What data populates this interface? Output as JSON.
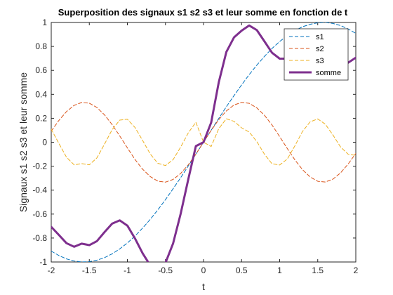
{
  "chart_data": {
    "type": "line",
    "title": "Superposition des signaux s1 s2 s3 et leur somme en fonction de t",
    "xlabel": "t",
    "ylabel": "Signaux s1 s2 s3 et leur somme",
    "xlim": [
      -2,
      2
    ],
    "ylim": [
      -1,
      1
    ],
    "xticks": [
      -2,
      -1.5,
      -1,
      -0.5,
      0,
      0.5,
      1,
      1.5,
      2
    ],
    "xtick_labels": [
      "-2",
      "-1.5",
      "-1",
      "-0.5",
      "0",
      "0.5",
      "1",
      "1.5",
      "2"
    ],
    "yticks": [
      -1,
      -0.8,
      -0.6,
      -0.4,
      -0.2,
      0,
      0.2,
      0.4,
      0.6,
      0.8,
      1
    ],
    "ytick_labels": [
      "-1",
      "-0.8",
      "-0.6",
      "-0.4",
      "-0.2",
      "0",
      "0.2",
      "0.4",
      "0.6",
      "0.8",
      "1"
    ],
    "grid": false,
    "legend_position": "top-right",
    "x": [
      -2.0,
      -1.9,
      -1.8,
      -1.7,
      -1.6,
      -1.5,
      -1.4,
      -1.3,
      -1.2,
      -1.1,
      -1.0,
      -0.9,
      -0.8,
      -0.7,
      -0.6,
      -0.5,
      -0.4,
      -0.3,
      -0.2,
      -0.1,
      0.0,
      0.1,
      0.2,
      0.3,
      0.4,
      0.5,
      0.6,
      0.7,
      0.8,
      0.9,
      1.0,
      1.1,
      1.2,
      1.3,
      1.4,
      1.5,
      1.6,
      1.7,
      1.8,
      1.9,
      2.0
    ],
    "series": [
      {
        "name": "s1",
        "color": "#0072BD",
        "style": "dashed",
        "width": 1,
        "values": [
          -0.909,
          -0.946,
          -0.974,
          -0.992,
          -1.0,
          -0.997,
          -0.985,
          -0.964,
          -0.932,
          -0.891,
          -0.841,
          -0.783,
          -0.717,
          -0.644,
          -0.565,
          -0.479,
          -0.389,
          -0.296,
          -0.199,
          -0.1,
          0.0,
          0.1,
          0.199,
          0.296,
          0.389,
          0.479,
          0.565,
          0.644,
          0.717,
          0.783,
          0.841,
          0.891,
          0.932,
          0.964,
          0.985,
          0.997,
          1.0,
          0.992,
          0.974,
          0.946,
          0.909
        ]
      },
      {
        "name": "s2",
        "color": "#D95319",
        "style": "dashed",
        "width": 1,
        "values": [
          0.093,
          0.182,
          0.256,
          0.308,
          0.332,
          0.326,
          0.29,
          0.229,
          0.147,
          0.053,
          -0.047,
          -0.144,
          -0.225,
          -0.287,
          -0.325,
          -0.333,
          -0.311,
          -0.261,
          -0.188,
          -0.099,
          0.0,
          0.099,
          0.188,
          0.261,
          0.311,
          0.333,
          0.325,
          0.287,
          0.225,
          0.144,
          0.047,
          -0.053,
          -0.147,
          -0.229,
          -0.29,
          -0.326,
          -0.332,
          -0.308,
          -0.256,
          -0.182,
          -0.093
        ]
      },
      {
        "name": "s3",
        "color": "#EDB120",
        "style": "dashed",
        "width": 1,
        "values": [
          0.109,
          -0.01,
          -0.125,
          -0.189,
          -0.179,
          -0.188,
          -0.131,
          -0.016,
          0.105,
          0.185,
          0.192,
          0.123,
          0.015,
          -0.098,
          -0.176,
          -0.195,
          -0.146,
          -0.041,
          0.078,
          0.167,
          0.0,
          -0.035,
          0.113,
          0.196,
          0.175,
          0.12,
          0.085,
          0.005,
          -0.1,
          -0.18,
          -0.19,
          -0.14,
          -0.03,
          0.09,
          0.17,
          0.195,
          0.15,
          0.06,
          -0.04,
          -0.1,
          -0.11
        ]
      },
      {
        "name": "somme",
        "color": "#7E2F8E",
        "style": "solid",
        "width": 3,
        "values": [
          -0.707,
          -0.774,
          -0.843,
          -0.873,
          -0.847,
          -0.859,
          -0.826,
          -0.751,
          -0.68,
          -0.653,
          -0.696,
          -0.804,
          -0.927,
          -1.029,
          -1.066,
          -1.007,
          -0.846,
          -0.598,
          -0.309,
          -0.032,
          0.0,
          0.164,
          0.5,
          0.753,
          0.875,
          0.932,
          0.975,
          0.936,
          0.842,
          0.747,
          0.698,
          0.698,
          0.755,
          0.825,
          0.865,
          0.866,
          0.818,
          0.744,
          0.678,
          0.664,
          0.706
        ]
      }
    ]
  }
}
